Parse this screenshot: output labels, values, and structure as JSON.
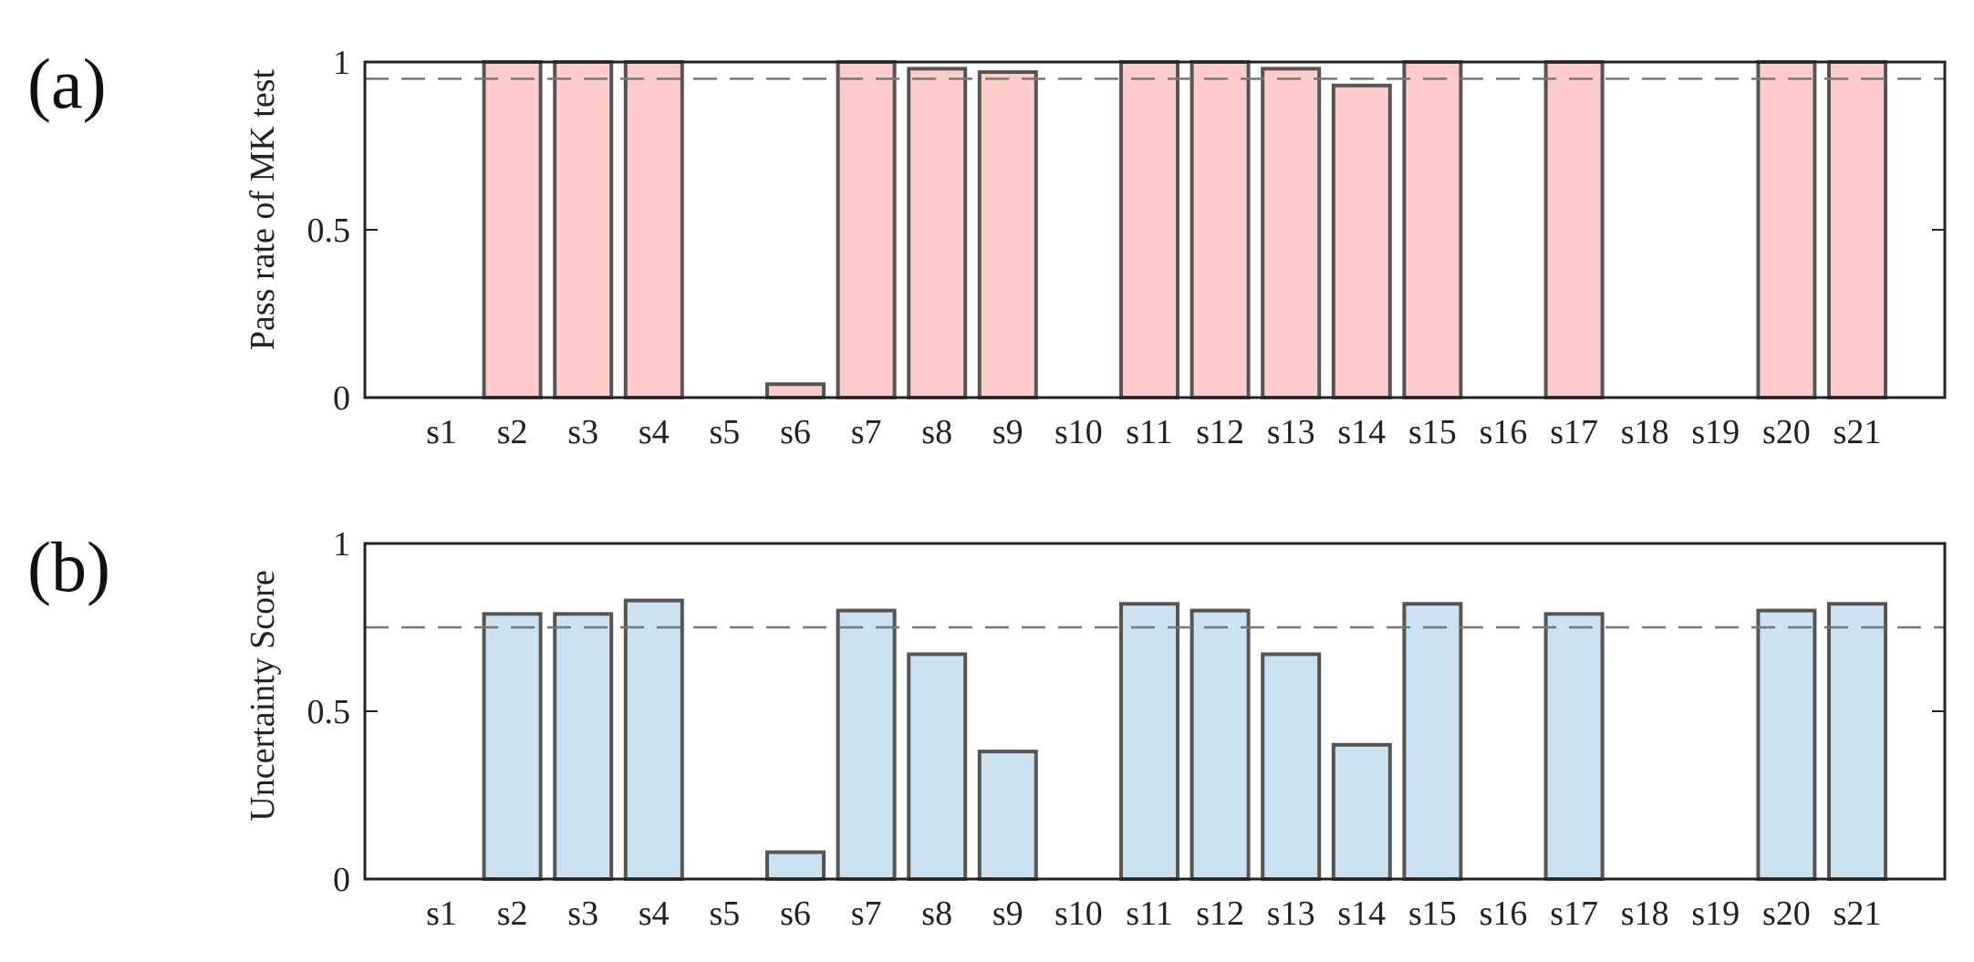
{
  "chart_data": [
    {
      "type": "bar",
      "panel_label": "(a)",
      "title": "",
      "xlabel": "",
      "ylabel": "Pass rate of MK test",
      "categories": [
        "s1",
        "s2",
        "s3",
        "s4",
        "s5",
        "s6",
        "s7",
        "s8",
        "s9",
        "s10",
        "s11",
        "s12",
        "s13",
        "s14",
        "s15",
        "s16",
        "s17",
        "s18",
        "s19",
        "s20",
        "s21"
      ],
      "values": [
        0,
        1.0,
        1.0,
        1.0,
        0,
        0.04,
        1.0,
        0.98,
        0.97,
        0,
        1.0,
        1.0,
        0.98,
        0.93,
        1.0,
        0,
        1.0,
        0,
        0,
        1.0,
        1.0
      ],
      "ylim": [
        0,
        1
      ],
      "yticks": [
        0,
        0.5,
        1
      ],
      "ytick_labels": [
        "0",
        "0.5",
        "1"
      ],
      "reference_line": 0.95,
      "bar_color": "#ffcccc",
      "edge_color": "#555555",
      "grid": false,
      "legend": "none"
    },
    {
      "type": "bar",
      "panel_label": "(b)",
      "title": "",
      "xlabel": "",
      "ylabel": "Uncertainty Score",
      "categories": [
        "s1",
        "s2",
        "s3",
        "s4",
        "s5",
        "s6",
        "s7",
        "s8",
        "s9",
        "s10",
        "s11",
        "s12",
        "s13",
        "s14",
        "s15",
        "s16",
        "s17",
        "s18",
        "s19",
        "s20",
        "s21"
      ],
      "values": [
        0,
        0.79,
        0.79,
        0.83,
        0,
        0.08,
        0.8,
        0.67,
        0.38,
        0,
        0.82,
        0.8,
        0.67,
        0.4,
        0.82,
        0,
        0.79,
        0,
        0,
        0.8,
        0.82
      ],
      "ylim": [
        0,
        1
      ],
      "yticks": [
        0,
        0.5,
        1
      ],
      "ytick_labels": [
        "0",
        "0.5",
        "1"
      ],
      "reference_line": 0.75,
      "bar_color": "#cce2f0",
      "edge_color": "#555555",
      "grid": false,
      "legend": "none"
    }
  ]
}
